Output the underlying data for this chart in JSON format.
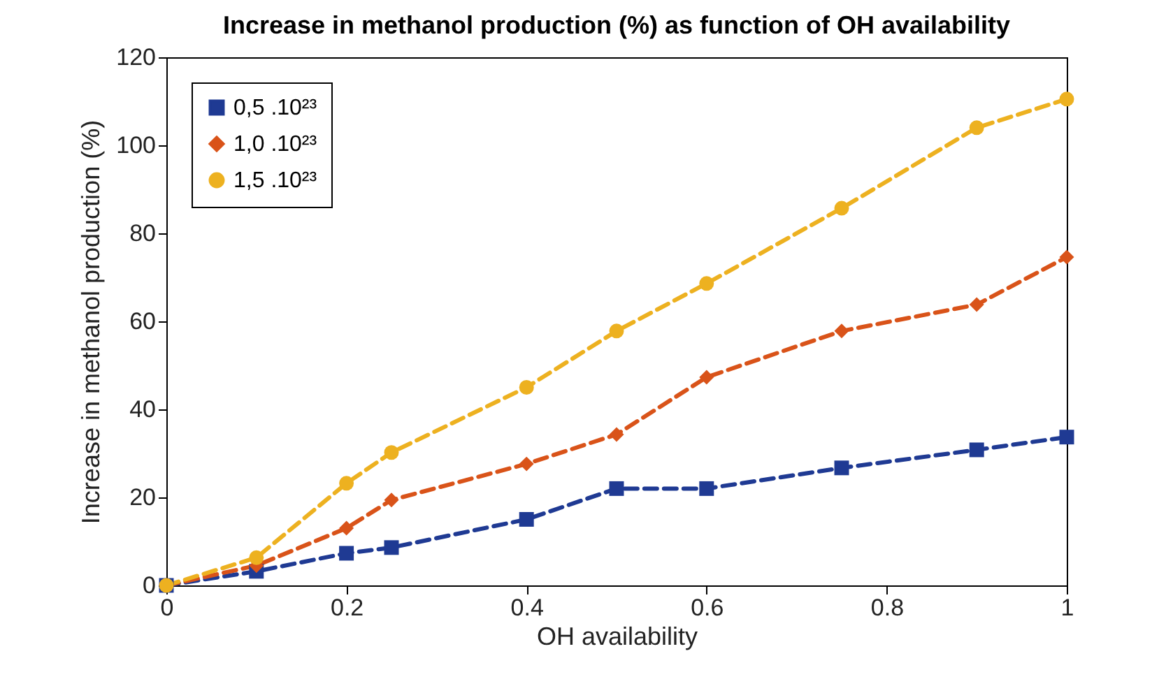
{
  "chart_data": {
    "type": "line",
    "title": "Increase in methanol production (%) as function of OH availability",
    "xlabel": "OH availability",
    "ylabel": "Increase in methanol production (%)",
    "x": [
      0,
      0.1,
      0.2,
      0.25,
      0.4,
      0.5,
      0.6,
      0.75,
      0.9,
      1
    ],
    "series": [
      {
        "name": "0,5 .10²³",
        "color": "#1f3a93",
        "marker": "square",
        "values": [
          0,
          3.2,
          7.3,
          8.6,
          15,
          22,
          22,
          26.7,
          30.8,
          33.7
        ]
      },
      {
        "name": "1,0 .10²³",
        "color": "#d95319",
        "marker": "diamond",
        "values": [
          0,
          4.5,
          13,
          19.4,
          27.6,
          34.3,
          47.3,
          57.8,
          63.8,
          74.6
        ]
      },
      {
        "name": "1,5 .10²³",
        "color": "#edb120",
        "marker": "circle",
        "values": [
          0,
          6.3,
          23.2,
          30.2,
          45,
          57.8,
          68.6,
          85.7,
          104,
          110.5
        ]
      }
    ],
    "xlim": [
      0,
      1
    ],
    "xticks": [
      0,
      0.2,
      0.4,
      0.6,
      0.8,
      1
    ],
    "ylim": [
      0,
      120
    ],
    "yticks": [
      0,
      20,
      40,
      60,
      80,
      100,
      120
    ],
    "grid": false,
    "legend": "top left",
    "line_style": "dashed"
  }
}
